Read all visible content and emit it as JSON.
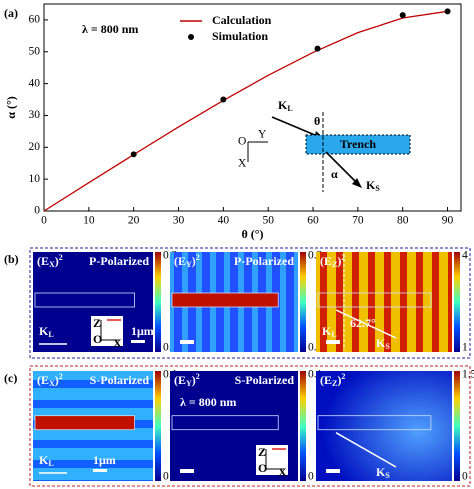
{
  "chart_data": {
    "type": "line",
    "panel_label": "(a)",
    "x_label": "θ (°)",
    "y_label": "α (°)",
    "xlim": [
      0,
      93
    ],
    "ylim": [
      0,
      65
    ],
    "xticks": [
      0,
      10,
      20,
      30,
      40,
      50,
      60,
      70,
      80,
      90
    ],
    "yticks": [
      0,
      10,
      20,
      30,
      40,
      50,
      60
    ],
    "legend": "upper-center",
    "series": [
      {
        "name": "Calculation",
        "type": "line",
        "color": "#c00000",
        "x": [
          0,
          10,
          20,
          30,
          40,
          50,
          60,
          70,
          80,
          90
        ],
        "values": [
          0,
          8.9,
          17.7,
          26.4,
          34.7,
          42.6,
          49.8,
          56,
          60.6,
          62.7
        ]
      },
      {
        "name": "Simulation",
        "type": "scatter",
        "color": "#000000",
        "x": [
          20,
          40,
          61,
          80,
          90
        ],
        "values": [
          17.8,
          35,
          51,
          61.5,
          62.7
        ]
      }
    ],
    "annotations": {
      "wavelength": "λ = 800 nm",
      "k_l": {
        "main": "K",
        "sub": "L"
      },
      "theta": "θ",
      "trench": "Trench",
      "alpha": "α",
      "k_s": {
        "main": "K",
        "sub": "S"
      },
      "origin": "O",
      "y_axis": "Y",
      "x_axis": "X"
    }
  },
  "panels": [
    {
      "label": "(b)",
      "maps": [
        {
          "field": {
            "pre": "(E",
            "sub": "X",
            "post": ")",
            "sup": "2"
          },
          "pol": "P-Polarized",
          "cmax": "0.3",
          "cmin": "0.05",
          "kl": {
            "main": "K",
            "sub": "L"
          },
          "scale": "1μm",
          "axes": {
            "z": "Z",
            "o": "O",
            "x": "X"
          }
        },
        {
          "field": {
            "pre": "(E",
            "sub": "Y",
            "post": ")",
            "sup": "2"
          },
          "pol": "P-Polarized",
          "cmax": "0.3",
          "cmin": "0.05"
        },
        {
          "field": {
            "pre": "(E",
            "sub": "Z",
            "post": ")",
            "sup": "2"
          },
          "cmax": "4",
          "cmin": "1",
          "kl": {
            "main": "K",
            "sub": "L"
          },
          "angle": "62.7°",
          "ks": {
            "main": "K",
            "sub": "S"
          }
        }
      ]
    },
    {
      "label": "(c)",
      "maps": [
        {
          "field": {
            "pre": "(E",
            "sub": "X",
            "post": ")",
            "sup": "2"
          },
          "pol": "S-Polarized",
          "cmax": "0.1",
          "cmin": "0",
          "kl": {
            "main": "K",
            "sub": "L"
          },
          "scale": "1μm"
        },
        {
          "field": {
            "pre": "(E",
            "sub": "Y",
            "post": ")",
            "sup": "2"
          },
          "pol": "S-Polarized",
          "wavelength": "λ = 800 nm",
          "cmax": "0.1",
          "cmin": "0",
          "axes": {
            "z": "Z",
            "o": "O",
            "x": "X"
          }
        },
        {
          "field": {
            "pre": "(E",
            "sub": "Z",
            "post": ")",
            "sup": "2"
          },
          "cmax": "1.5",
          "cmin": "0",
          "ks": {
            "main": "K",
            "sub": "S"
          }
        }
      ]
    }
  ]
}
